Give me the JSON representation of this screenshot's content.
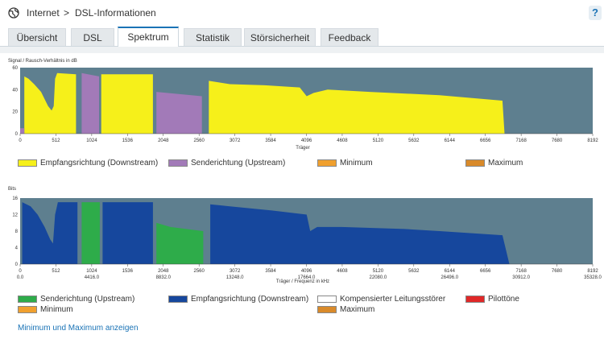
{
  "header": {
    "crumb1": "Internet",
    "separator": ">",
    "crumb2": "DSL-Informationen",
    "help": "?"
  },
  "tabs": [
    {
      "label": "Übersicht"
    },
    {
      "label": "DSL"
    },
    {
      "label": "Spektrum",
      "active": true
    },
    {
      "label": "Statistik"
    },
    {
      "label": "Störsicherheit"
    },
    {
      "label": "Feedback"
    }
  ],
  "colors": {
    "plot_bg": "#5e7f8f",
    "downstream_yellow": "#f6f01a",
    "upstream_purple": "#a27ab8",
    "upstream_green": "#2eac4a",
    "downstream_blue": "#16479d",
    "minimum": "#f0a02e",
    "maximum": "#d98a2a",
    "pilot": "#e02828",
    "compensated": "#ffffff"
  },
  "chart_data": [
    {
      "type": "area",
      "ylabel": "Signal / Rausch-Verhältnis in dB",
      "xlabel": "Träger",
      "ylim": [
        0,
        60
      ],
      "xlim": [
        0,
        8192
      ],
      "yticks": [
        "0",
        "20",
        "40",
        "60"
      ],
      "xticks": [
        "0",
        "512",
        "1024",
        "1536",
        "2048",
        "2560",
        "3072",
        "3584",
        "4096",
        "4608",
        "5120",
        "5632",
        "6144",
        "6656",
        "7168",
        "7680",
        "8192"
      ],
      "series": [
        {
          "name": "Empfangsrichtung (Downstream)",
          "color": "#f6f01a",
          "points": [
            [
              60,
              0
            ],
            [
              60,
              52
            ],
            [
              120,
              50
            ],
            [
              200,
              45
            ],
            [
              300,
              38
            ],
            [
              400,
              25
            ],
            [
              450,
              21
            ],
            [
              480,
              25
            ],
            [
              500,
              50
            ],
            [
              530,
              55
            ],
            [
              800,
              54
            ],
            [
              800,
              0
            ],
            [
              1160,
              0
            ],
            [
              1160,
              54
            ],
            [
              1900,
              54
            ],
            [
              1900,
              0
            ],
            [
              2700,
              0
            ],
            [
              2700,
              48
            ],
            [
              3000,
              45
            ],
            [
              3500,
              44
            ],
            [
              4000,
              42
            ],
            [
              4100,
              34
            ],
            [
              4200,
              37
            ],
            [
              4400,
              40
            ],
            [
              5000,
              38
            ],
            [
              6000,
              35
            ],
            [
              6900,
              30
            ],
            [
              6930,
              0
            ]
          ]
        },
        {
          "name": "Senderichtung (Upstream)",
          "color": "#a27ab8",
          "points": [
            [
              0,
              0
            ],
            [
              0,
              5
            ],
            [
              60,
              5
            ],
            [
              60,
              0
            ],
            [
              880,
              0
            ],
            [
              880,
              55
            ],
            [
              1130,
              52
            ],
            [
              1130,
              0
            ],
            [
              1950,
              0
            ],
            [
              1950,
              38
            ],
            [
              2600,
              34
            ],
            [
              2600,
              0
            ]
          ]
        }
      ]
    },
    {
      "type": "area",
      "ylabel": "Bits",
      "xlabel": "Träger / Frequenz in kHz",
      "ylim": [
        0,
        16
      ],
      "xlim": [
        0,
        8192
      ],
      "yticks": [
        "0",
        "4",
        "8",
        "12",
        "16"
      ],
      "xticks": [
        "0",
        "512",
        "1024",
        "1536",
        "2048",
        "2560",
        "3072",
        "3584",
        "4096",
        "4608",
        "5120",
        "5632",
        "6144",
        "6656",
        "7168",
        "7680",
        "8192"
      ],
      "freq_ticks": [
        "0.0",
        "4416.0",
        "8832.0",
        "13248.0",
        "17664.0",
        "22080.0",
        "26496.0",
        "30912.0",
        "35328.0"
      ],
      "series": [
        {
          "name": "Empfangsrichtung (Downstream)",
          "color": "#16479d",
          "points": [
            [
              30,
              0
            ],
            [
              30,
              15
            ],
            [
              150,
              14
            ],
            [
              250,
              12
            ],
            [
              350,
              9
            ],
            [
              430,
              6
            ],
            [
              470,
              5
            ],
            [
              500,
              12
            ],
            [
              540,
              15
            ],
            [
              820,
              15
            ],
            [
              820,
              0
            ],
            [
              1180,
              0
            ],
            [
              1180,
              15
            ],
            [
              1900,
              15
            ],
            [
              1900,
              0
            ],
            [
              2720,
              0
            ],
            [
              2720,
              14.5
            ],
            [
              3000,
              14
            ],
            [
              3600,
              13
            ],
            [
              4100,
              12
            ],
            [
              4150,
              8
            ],
            [
              4250,
              9
            ],
            [
              4600,
              9
            ],
            [
              5500,
              8.5
            ],
            [
              6000,
              8
            ],
            [
              6900,
              7
            ],
            [
              7000,
              0
            ]
          ]
        },
        {
          "name": "Senderichtung (Upstream)",
          "color": "#2eac4a",
          "points": [
            [
              880,
              0
            ],
            [
              880,
              15
            ],
            [
              1140,
              15
            ],
            [
              1140,
              0
            ],
            [
              1950,
              0
            ],
            [
              1950,
              10
            ],
            [
              2150,
              9
            ],
            [
              2620,
              8
            ],
            [
              2620,
              0
            ]
          ]
        }
      ]
    }
  ],
  "legend1": [
    {
      "label": "Empfangsrichtung (Downstream)",
      "color": "#f6f01a"
    },
    {
      "label": "Senderichtung (Upstream)",
      "color": "#a27ab8"
    },
    {
      "label": "Minimum",
      "color": "#f0a02e"
    },
    {
      "label": "Maximum",
      "color": "#d98a2a"
    }
  ],
  "legend2": [
    {
      "label": "Senderichtung (Upstream)",
      "color": "#2eac4a"
    },
    {
      "label": "Empfangsrichtung (Downstream)",
      "color": "#16479d"
    },
    {
      "label": "Kompensierter Leitungsstörer",
      "color": "#ffffff"
    },
    {
      "label": "Pilottöne",
      "color": "#e02828"
    },
    {
      "label": "Minimum",
      "color": "#f0a02e"
    },
    {
      "label": "Maximum",
      "color": "#d98a2a"
    }
  ],
  "link": "Minimum und Maximum anzeigen"
}
